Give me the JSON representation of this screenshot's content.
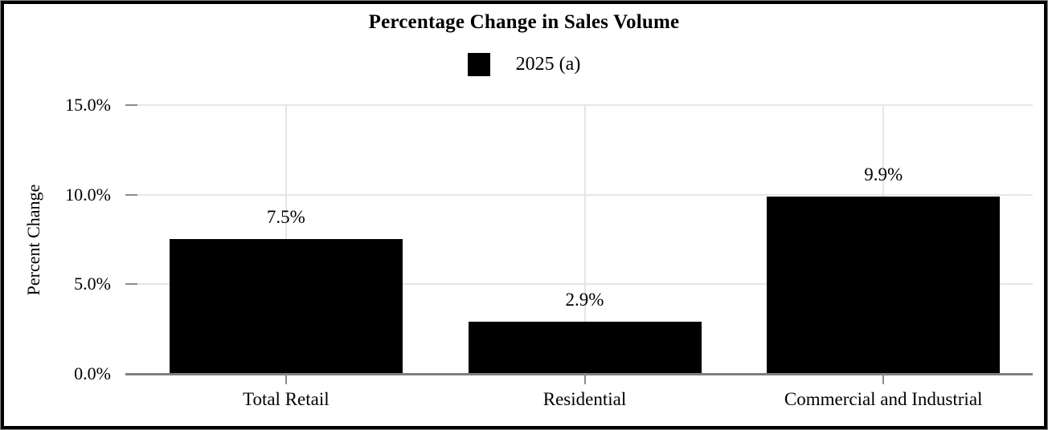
{
  "chart": {
    "title": "Percentage Change in Sales Volume",
    "legend": {
      "label": "2025 (a)",
      "swatch_color": "#000000"
    },
    "y_axis_title": "Percent Change"
  },
  "chart_data": {
    "type": "bar",
    "title": "Percentage Change in Sales Volume",
    "series_name": "2025 (a)",
    "categories": [
      "Total Retail",
      "Residential",
      "Commercial and Industrial"
    ],
    "values": [
      7.5,
      2.9,
      9.9
    ],
    "value_labels": [
      "7.5%",
      "2.9%",
      "9.9%"
    ],
    "xlabel": "",
    "ylabel": "Percent Change",
    "ylim": [
      0,
      15.67
    ],
    "yticks": [
      {
        "value": 0,
        "label": "0.0%"
      },
      {
        "value": 5,
        "label": "5.0%"
      },
      {
        "value": 10,
        "label": "10.0%"
      },
      {
        "value": 15,
        "label": "15.0%"
      }
    ],
    "grid": true,
    "legend_position": "top-center",
    "bar_color": "#000000",
    "axis_line_color": "#7f7f7f",
    "gridline_color": "#e6e6e6",
    "tick_color": "#8c8c8c",
    "text_color": "#000000",
    "background_color": "#ffffff"
  }
}
